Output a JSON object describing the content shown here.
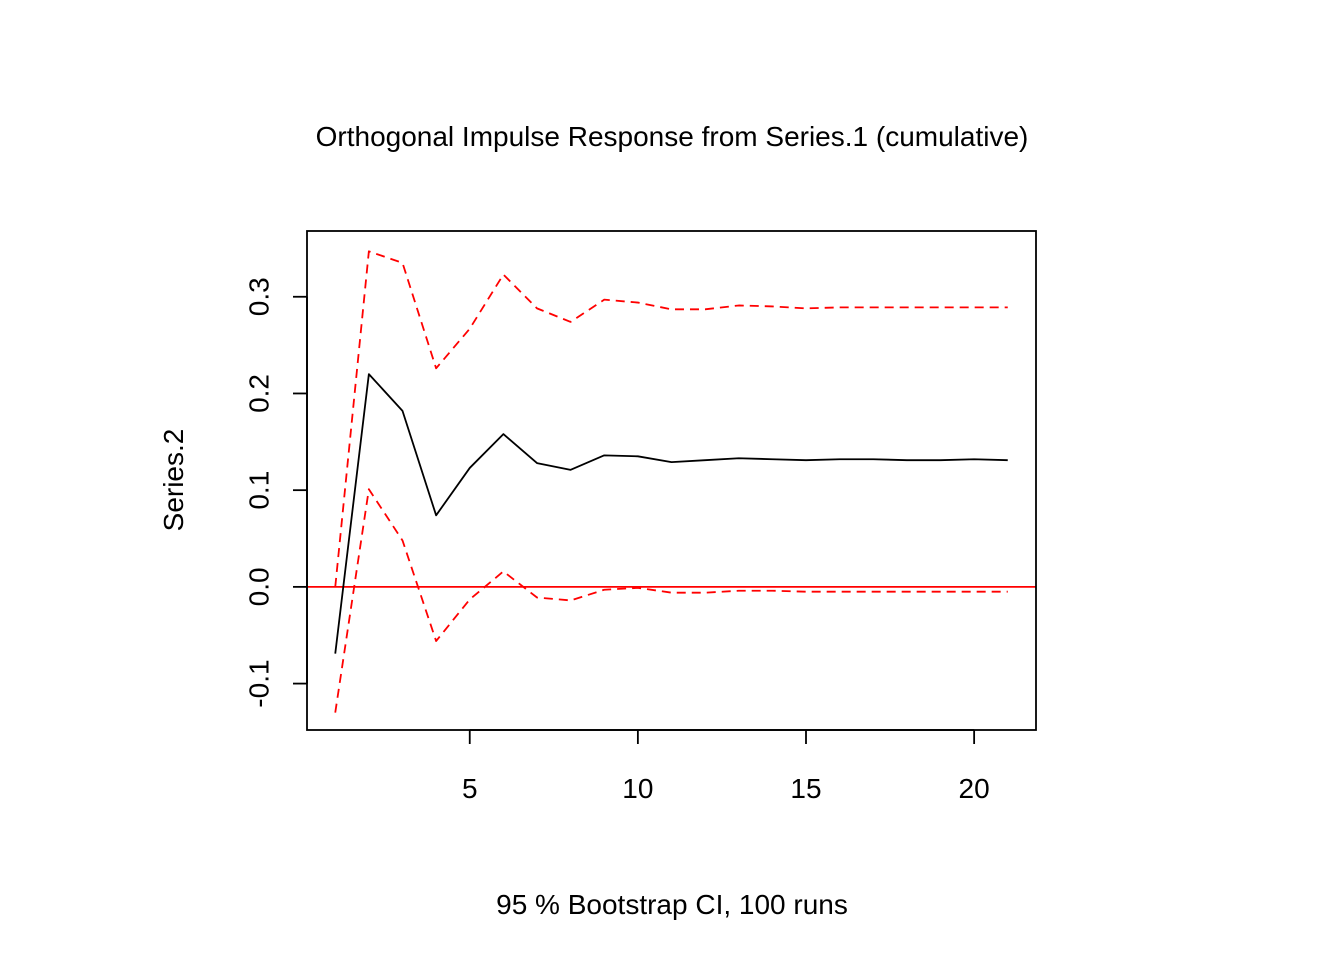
{
  "chart_data": {
    "type": "line",
    "title": "Orthogonal Impulse Response from Series.1 (cumulative)",
    "xlabel": "95 % Bootstrap CI,  100 runs",
    "ylabel": "Series.2",
    "xlim": [
      0.16,
      21.84
    ],
    "ylim": [
      -0.148,
      0.368
    ],
    "x_ticks": [
      5,
      10,
      15,
      20
    ],
    "y_ticks": [
      -0.1,
      0.0,
      0.1,
      0.2,
      0.3
    ],
    "x_tick_labels": [
      "5",
      "10",
      "15",
      "20"
    ],
    "y_tick_labels": [
      "-0.1",
      "0.0",
      "0.1",
      "0.2",
      "0.3"
    ],
    "x": [
      1,
      2,
      3,
      4,
      5,
      6,
      7,
      8,
      9,
      10,
      11,
      12,
      13,
      14,
      15,
      16,
      17,
      18,
      19,
      20,
      21
    ],
    "series": [
      {
        "name": "Series.2",
        "style": "solid",
        "color": "#000000",
        "values": [
          -0.069,
          0.22,
          0.182,
          0.074,
          0.123,
          0.158,
          0.128,
          0.121,
          0.136,
          0.135,
          0.129,
          0.131,
          0.133,
          0.132,
          0.131,
          0.132,
          0.132,
          0.131,
          0.131,
          0.132,
          0.131
        ]
      },
      {
        "name": "Upper",
        "style": "dashed",
        "color": "#ff0000",
        "values": [
          0.0,
          0.347,
          0.335,
          0.226,
          0.267,
          0.323,
          0.288,
          0.274,
          0.297,
          0.294,
          0.287,
          0.287,
          0.291,
          0.29,
          0.288,
          0.289,
          0.289,
          0.289,
          0.289,
          0.289,
          0.289
        ]
      },
      {
        "name": "Lower",
        "style": "dashed",
        "color": "#ff0000",
        "values": [
          -0.13,
          0.101,
          0.048,
          -0.056,
          -0.013,
          0.016,
          -0.011,
          -0.014,
          -0.003,
          -0.001,
          -0.006,
          -0.006,
          -0.004,
          -0.004,
          -0.005,
          -0.005,
          -0.005,
          -0.005,
          -0.005,
          -0.005,
          -0.005
        ]
      }
    ],
    "reference_line": {
      "name": "zero-line",
      "y": 0,
      "color": "#ff0000"
    },
    "grid": false,
    "legend": "none"
  }
}
